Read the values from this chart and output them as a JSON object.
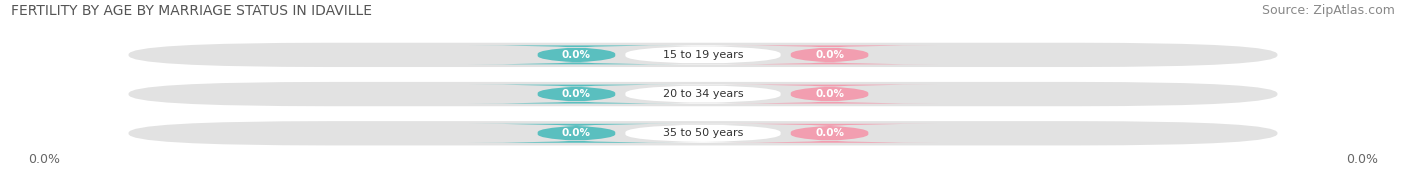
{
  "title": "FERTILITY BY AGE BY MARRIAGE STATUS IN IDAVILLE",
  "source": "Source: ZipAtlas.com",
  "categories": [
    "15 to 19 years",
    "20 to 34 years",
    "35 to 50 years"
  ],
  "married_values": [
    "0.0%",
    "0.0%",
    "0.0%"
  ],
  "unmarried_values": [
    "0.0%",
    "0.0%",
    "0.0%"
  ],
  "married_color": "#5abfbf",
  "unmarried_color": "#f29eb0",
  "bar_bg_color": "#e2e2e2",
  "left_label": "0.0%",
  "right_label": "0.0%",
  "title_fontsize": 10,
  "source_fontsize": 9,
  "label_fontsize": 9,
  "legend_fontsize": 9,
  "background_color": "#ffffff"
}
